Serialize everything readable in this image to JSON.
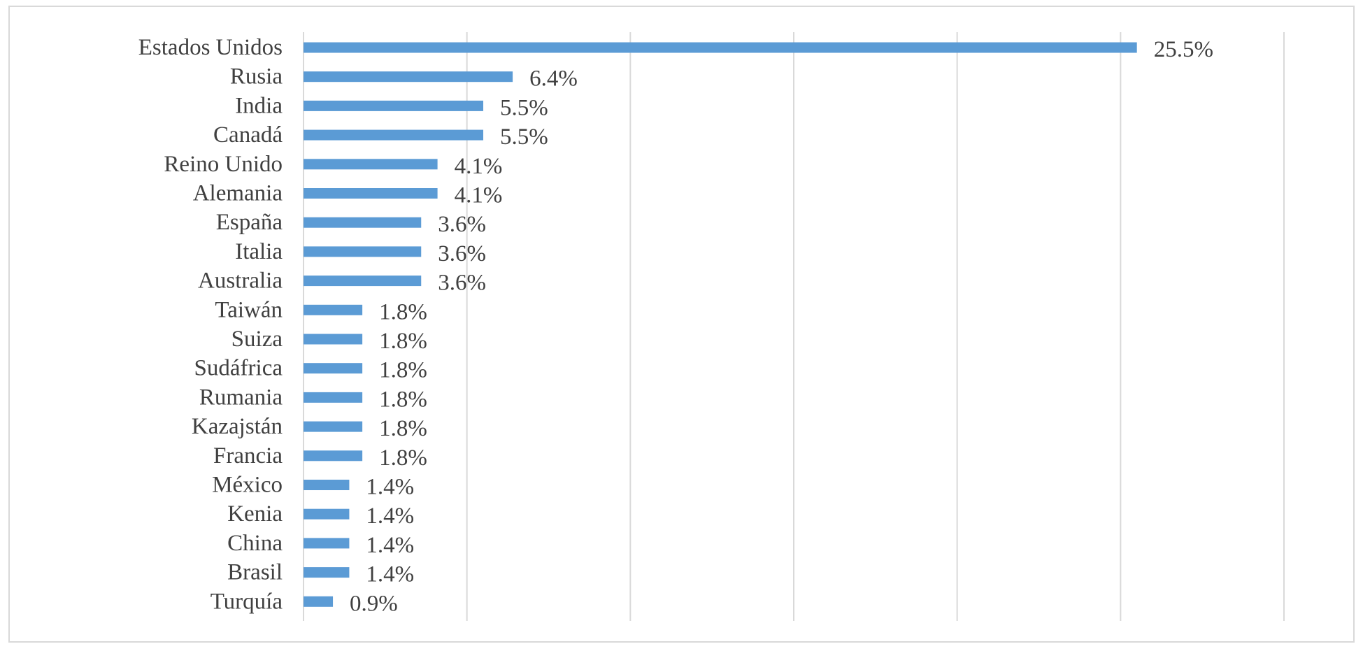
{
  "chart_data": {
    "type": "bar",
    "orientation": "horizontal",
    "title": "",
    "xlabel": "",
    "ylabel": "",
    "categories": [
      "Estados Unidos",
      "Rusia",
      "India",
      "Canadá",
      "Reino Unido",
      "Alemania",
      "España",
      "Italia",
      "Australia",
      "Taiwán",
      "Suiza",
      "Sudáfrica",
      "Rumania",
      "Kazajstán",
      "Francia",
      "México",
      "Kenia",
      "China",
      "Brasil",
      "Turquía"
    ],
    "values": [
      25.5,
      6.4,
      5.5,
      5.5,
      4.1,
      4.1,
      3.6,
      3.6,
      3.6,
      1.8,
      1.8,
      1.8,
      1.8,
      1.8,
      1.8,
      1.4,
      1.4,
      1.4,
      1.4,
      0.9
    ],
    "value_labels": [
      "25.5%",
      "6.4%",
      "5.5%",
      "5.5%",
      "4.1%",
      "4.1%",
      "3.6%",
      "3.6%",
      "3.6%",
      "1.8%",
      "1.8%",
      "1.8%",
      "1.8%",
      "1.8%",
      "1.8%",
      "1.4%",
      "1.4%",
      "1.4%",
      "1.4%",
      "0.9%"
    ],
    "xlim": [
      0,
      30
    ],
    "gridlines": "vertical",
    "legend": "none",
    "colors": {
      "bar": "#5b9bd5",
      "grid": "#d9d9d9",
      "text": "#404040",
      "frame": "#d9d9d9"
    }
  }
}
